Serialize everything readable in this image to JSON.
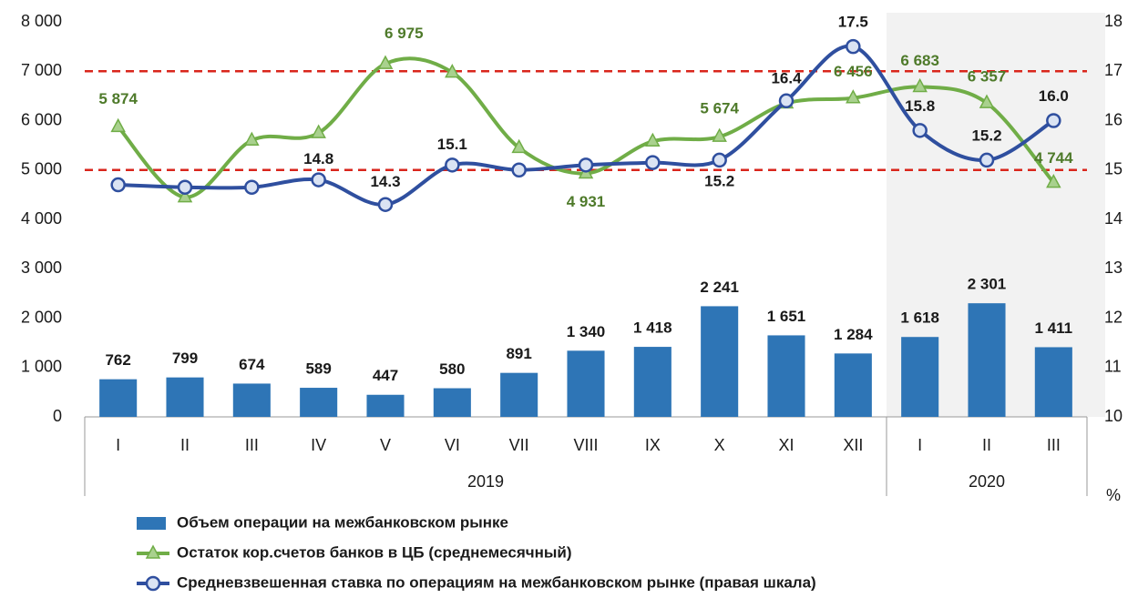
{
  "chart_data": {
    "type": "combo",
    "groups": [
      {
        "name": "2019",
        "categories": [
          "I",
          "II",
          "III",
          "IV",
          "V",
          "VI",
          "VII",
          "VIII",
          "IX",
          "X",
          "XI",
          "XII"
        ],
        "shaded": false
      },
      {
        "name": "2020",
        "categories": [
          "I",
          "II",
          "III"
        ],
        "shaded": true
      }
    ],
    "series": [
      {
        "name": "Объем операции на межбанковском рынке",
        "type": "bar",
        "color": "#2e75b6",
        "axis": "y",
        "values": [
          762,
          799,
          674,
          589,
          447,
          580,
          891,
          1340,
          1418,
          2241,
          1651,
          1284,
          1618,
          2301,
          1411
        ],
        "value_labels": [
          "762",
          "799",
          "674",
          "589",
          "447",
          "580",
          "891",
          "1 340",
          "1 418",
          "2 241",
          "1 651",
          "1 284",
          "1 618",
          "2 301",
          "1 411"
        ]
      },
      {
        "name": "Остаток кор.счетов банков в ЦБ (среднемесячный)",
        "type": "line",
        "color": "#70ad47",
        "marker_color": "#a9d18e",
        "label_color": "#4e7a2a",
        "axis": "y",
        "values": [
          5874,
          4450,
          5600,
          5750,
          7150,
          6975,
          5450,
          4931,
          5580,
          5674,
          6350,
          6456,
          6683,
          6357,
          4744
        ],
        "value_labels": [
          "5 874",
          null,
          null,
          null,
          null,
          "6 975",
          null,
          "4 931",
          null,
          "5 674",
          null,
          "6 456",
          "6 683",
          "6 357",
          "4 744"
        ]
      },
      {
        "name": "Средневзвешенная ставка по операциям на межбанковском рынке (правая шкала)",
        "type": "line",
        "color": "#2f4f9f",
        "marker_color": "#dae3f3",
        "label_color": "#1a1a1a",
        "axis": "y2",
        "values": [
          14.7,
          14.65,
          14.65,
          14.8,
          14.3,
          15.1,
          15.0,
          15.1,
          15.15,
          15.2,
          16.4,
          17.5,
          15.8,
          15.2,
          16.0
        ],
        "value_labels": [
          null,
          null,
          null,
          "14.8",
          "14.3",
          "15.1",
          null,
          null,
          null,
          "15.2",
          "16.4",
          "17.5",
          "15.8",
          "15.2",
          "16.0"
        ]
      }
    ],
    "reference_lines": [
      7000,
      5000
    ],
    "reference_color": "#d9261c",
    "ylim": [
      0,
      8000
    ],
    "yticks": [
      0,
      {
        "value": 1000,
        "label": "1 000"
      },
      {
        "value": 2000,
        "label": "2 000"
      },
      {
        "value": 3000,
        "label": "3 000"
      },
      {
        "value": 4000,
        "label": "4 000"
      },
      {
        "value": 5000,
        "label": "5 000"
      },
      {
        "value": 6000,
        "label": "6 000"
      },
      {
        "value": 7000,
        "label": "7 000"
      },
      {
        "value": 8000,
        "label": "8 000"
      }
    ],
    "y2lim": [
      10,
      18
    ],
    "y2ticks": [
      10,
      11,
      12,
      13,
      14,
      15,
      16,
      17,
      18
    ],
    "y2_unit": "%"
  }
}
